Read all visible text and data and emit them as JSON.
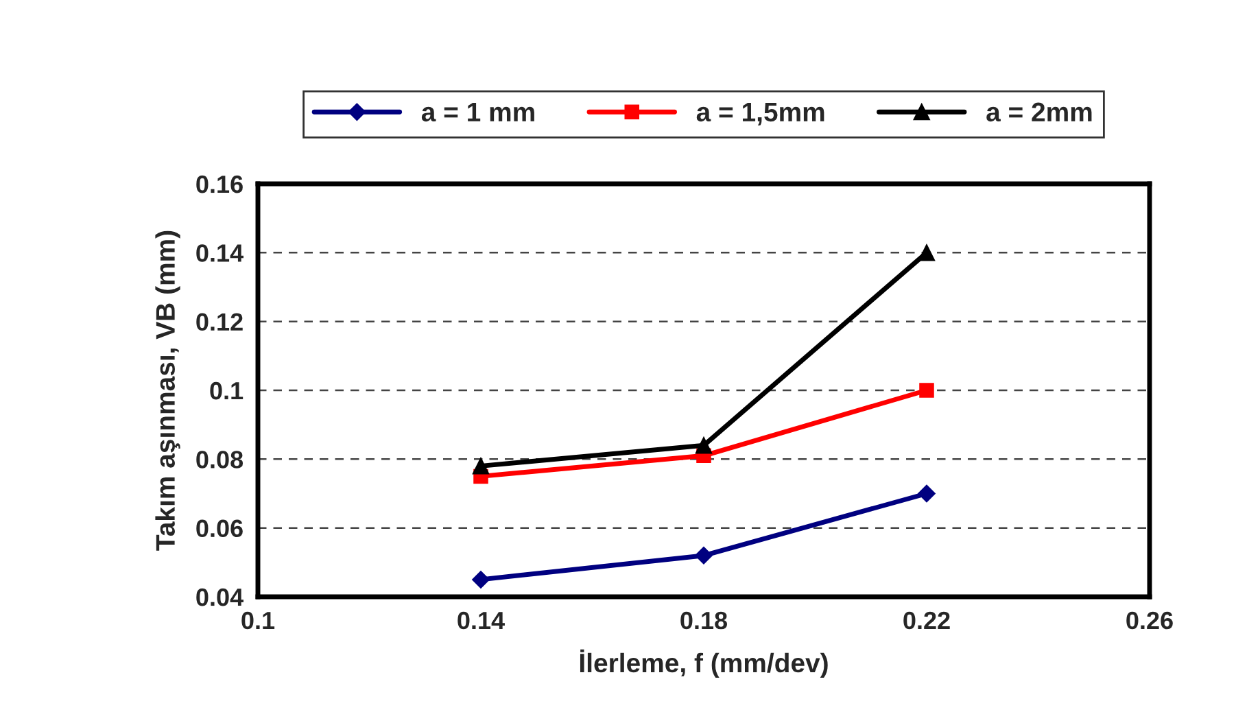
{
  "chart_data": {
    "type": "line",
    "xlabel": "İlerleme, f (mm/dev)",
    "ylabel": "Takım aşınması, VB (mm)",
    "x": [
      0.14,
      0.18,
      0.22
    ],
    "series": [
      {
        "name": "a = 1 mm",
        "color": "#000080",
        "marker": "diamond",
        "values": [
          0.045,
          0.052,
          0.07
        ]
      },
      {
        "name": "a = 1,5mm",
        "color": "#ff0000",
        "marker": "square",
        "values": [
          0.075,
          0.081,
          0.1
        ]
      },
      {
        "name": "a = 2mm",
        "color": "#000000",
        "marker": "triangle",
        "values": [
          0.078,
          0.084,
          0.14
        ]
      }
    ],
    "xlim": [
      0.1,
      0.26
    ],
    "xticks": [
      0.1,
      0.14,
      0.18,
      0.22,
      0.26
    ],
    "ylim": [
      0.04,
      0.16
    ],
    "yticks": [
      0.04,
      0.06,
      0.08,
      0.1,
      0.12,
      0.14,
      0.16
    ],
    "grid": "y",
    "legend": "top",
    "line_style": "solid"
  }
}
